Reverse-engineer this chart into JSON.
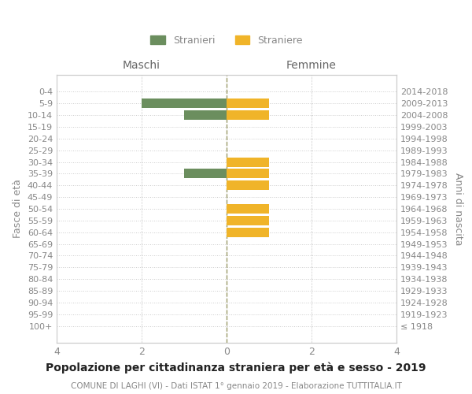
{
  "age_groups": [
    "0-4",
    "5-9",
    "10-14",
    "15-19",
    "20-24",
    "25-29",
    "30-34",
    "35-39",
    "40-44",
    "45-49",
    "50-54",
    "55-59",
    "60-64",
    "65-69",
    "70-74",
    "75-79",
    "80-84",
    "85-89",
    "90-94",
    "95-99",
    "100+"
  ],
  "birth_years": [
    "2014-2018",
    "2009-2013",
    "2004-2008",
    "1999-2003",
    "1994-1998",
    "1989-1993",
    "1984-1988",
    "1979-1983",
    "1974-1978",
    "1969-1973",
    "1964-1968",
    "1959-1963",
    "1954-1958",
    "1949-1953",
    "1944-1948",
    "1939-1943",
    "1934-1938",
    "1929-1933",
    "1924-1928",
    "1919-1923",
    "≤ 1918"
  ],
  "males": [
    0,
    -2,
    -1,
    0,
    0,
    0,
    0,
    -1,
    0,
    0,
    0,
    0,
    0,
    0,
    0,
    0,
    0,
    0,
    0,
    0,
    0
  ],
  "females": [
    0,
    1,
    1,
    0,
    0,
    0,
    1,
    1,
    1,
    0,
    1,
    1,
    1,
    0,
    0,
    0,
    0,
    0,
    0,
    0,
    0
  ],
  "male_color": "#6b8e5e",
  "female_color": "#f0b429",
  "title_main": "Popolazione per cittadinanza straniera per età e sesso - 2019",
  "title_sub": "COMUNE DI LAGHI (VI) - Dati ISTAT 1° gennaio 2019 - Elaborazione TUTTITALIA.IT",
  "label_maschi": "Maschi",
  "label_femmine": "Femmine",
  "ylabel_left": "Fasce di età",
  "ylabel_right": "Anni di nascita",
  "legend_male": "Stranieri",
  "legend_female": "Straniere",
  "xlim": [
    -4,
    4
  ],
  "xticks": [
    -4,
    -2,
    0,
    2,
    4
  ],
  "xticklabels": [
    "4",
    "2",
    "0",
    "2",
    "4"
  ],
  "bar_height": 0.8,
  "background_color": "#ffffff",
  "grid_color": "#cccccc",
  "dotted_grid_color": "#cccccc",
  "zeroline_color": "#999966",
  "text_color": "#888888",
  "header_color": "#666666",
  "title_color": "#222222",
  "subtitle_color": "#888888"
}
